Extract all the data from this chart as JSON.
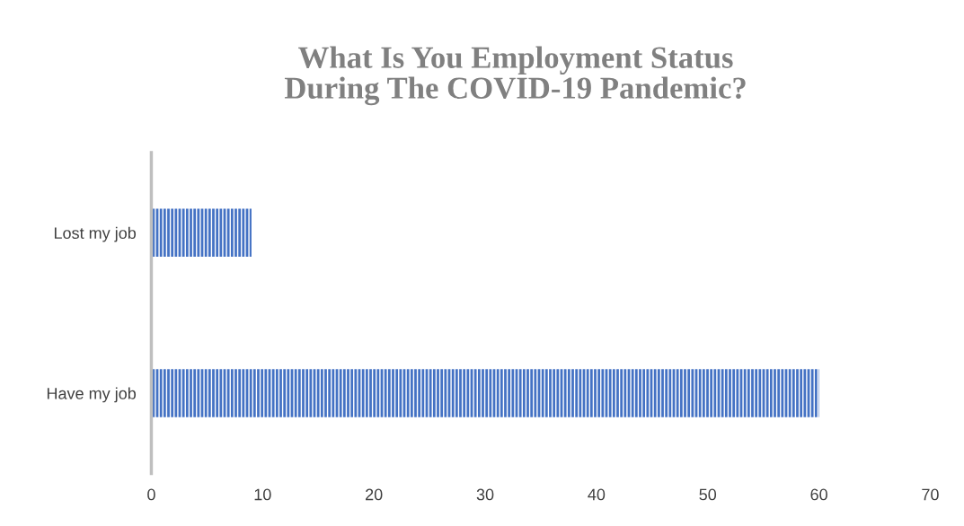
{
  "chart_data": {
    "type": "bar",
    "orientation": "horizontal",
    "title": "What Is You Employment Status\nDuring The COVID-19 Pandemic?",
    "categories": [
      "Lost my job",
      "Have my job"
    ],
    "values": [
      9,
      60
    ],
    "color": "#4472c4",
    "xlim": [
      0,
      70
    ],
    "xticks": [
      0,
      10,
      20,
      30,
      40,
      50,
      60,
      70
    ],
    "grid": false,
    "legend": false
  }
}
